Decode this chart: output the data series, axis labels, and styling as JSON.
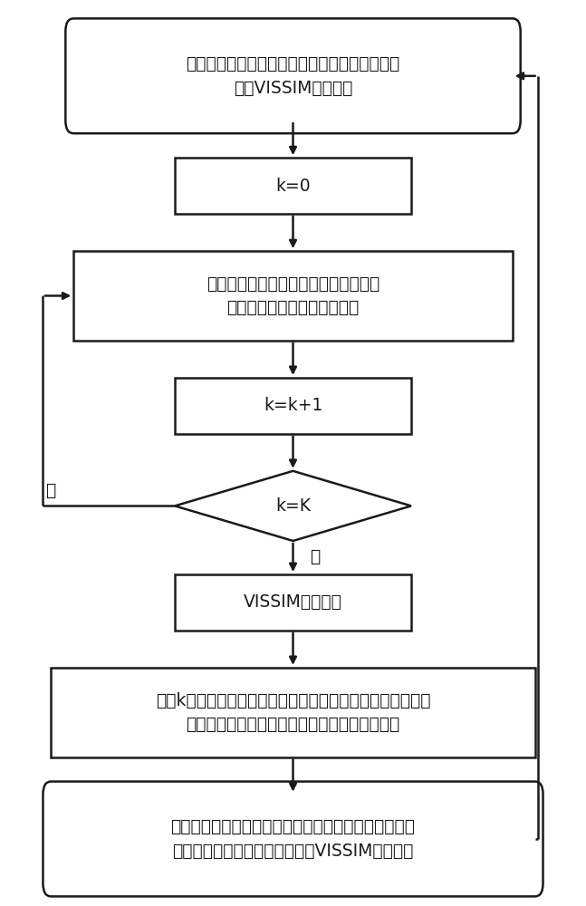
{
  "bg_color": "#ffffff",
  "box_edge_color": "#1a1a1a",
  "box_face_color": "#ffffff",
  "text_color": "#1a1a1a",
  "arrow_color": "#1a1a1a",
  "line_width": 1.8,
  "font_size": 13.5,
  "b1_text_line1": "根据实际信号配时方案、流量和交叉口道路条件",
  "b1_text_line2": "搞建VISSIM仿真模型",
  "b2_text": "k=0",
  "b3_text_line1": "保存当前周期各相位流量、排队长度、",
  "b3_text_line2": "平均车辆延误等交通流数据。",
  "b4_text": "k=k+1",
  "b5_text": "k=K",
  "b6_text": "VISSIM仿真中断",
  "b7_text_line1": "根据k个周期的交通流数据，计算多目标优化模型目标函数，",
  "b7_text_line2": "根据各相位流量时长分配绿时，校验约束条件。",
  "b8_text_line1": "采用自适应进化算法，以各相位绿时时长为决策变量，",
  "b8_text_line2": "获取信号配时方案非劣解，传回VISSIM仿真模型",
  "no_label": "否",
  "yes_label": "是"
}
